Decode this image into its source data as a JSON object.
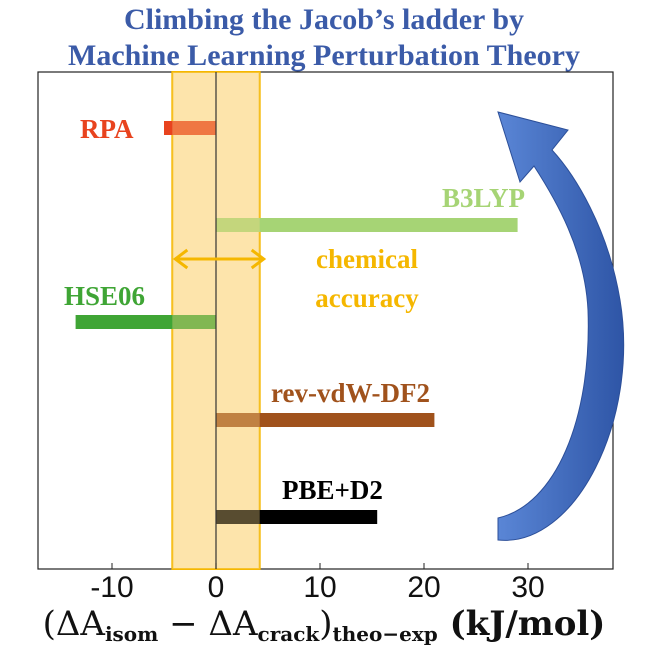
{
  "title": {
    "line1": "Climbing the Jacob’s ladder by",
    "line2": "Machine Learning Perturbation Theory"
  },
  "chart_data": {
    "type": "bar",
    "orientation": "horizontal",
    "xlim": [
      -15,
      30
    ],
    "xticks": [
      "-10",
      "0",
      "10",
      "20",
      "30"
    ],
    "xtick_values": [
      -10,
      0,
      10,
      20,
      30
    ],
    "grid": false,
    "xlabel": {
      "delta_a": "(ΔA",
      "sub1": "isom",
      "minus": " − ΔA",
      "sub2": "crack",
      "close": ")",
      "sub3": "theo−exp",
      "unit": "  (kJ/mol)"
    },
    "accuracy_band": {
      "range": [
        -4.2,
        4.2
      ],
      "label_line1": "chemical",
      "label_line2": "accuracy",
      "color": "#f5b700"
    },
    "series": [
      {
        "name": "RPA",
        "value": -5,
        "color": "#e8431e"
      },
      {
        "name": "B3LYP",
        "value": 29,
        "color": "#a6d475"
      },
      {
        "name": "HSE06",
        "value": -13.5,
        "color": "#3fa535"
      },
      {
        "name": "rev-vdW-DF2",
        "value": 21,
        "color": "#a0521c"
      },
      {
        "name": "PBE+D2",
        "value": 15.5,
        "color": "#000000"
      }
    ],
    "arrow_color": "#3a66b8"
  }
}
